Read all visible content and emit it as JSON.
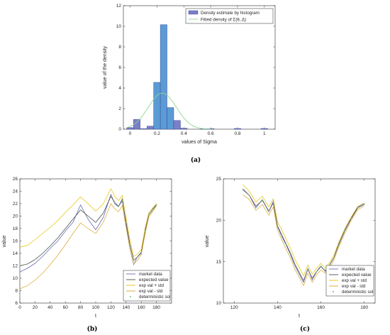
{
  "chart_data": [
    {
      "id": "a",
      "caption": "(a)",
      "type": "bar",
      "xlabel": "values of Sigma",
      "ylabel": "value of the density",
      "xlim": [
        -0.05,
        1.08
      ],
      "ylim": [
        0,
        12
      ],
      "xticks": [
        0,
        0.2,
        0.4,
        0.6,
        0.8,
        1
      ],
      "yticks": [
        0,
        2,
        4,
        6,
        8,
        10,
        12
      ],
      "bin_width": 0.05,
      "bins": [
        {
          "left": -0.025,
          "value": 0.15
        },
        {
          "left": 0.025,
          "value": 0.95
        },
        {
          "left": 0.075,
          "value": 0.05
        },
        {
          "left": 0.125,
          "value": 0.3
        },
        {
          "left": 0.175,
          "value": 4.55
        },
        {
          "left": 0.225,
          "value": 10.15
        },
        {
          "left": 0.275,
          "value": 2.1
        },
        {
          "left": 0.325,
          "value": 0.85
        },
        {
          "left": 0.375,
          "value": 0.1
        },
        {
          "left": 0.525,
          "value": 0.05
        },
        {
          "left": 0.575,
          "value": 0.05
        },
        {
          "left": 0.775,
          "value": 0.07
        },
        {
          "left": 0.975,
          "value": 0.07
        }
      ],
      "fitted_density": {
        "mean": 0.24,
        "std": 0.105,
        "peak": 3.5
      },
      "legend": {
        "position": "top-right",
        "entries": [
          "Density estimate by histogram",
          "Fitted density of Σ(θ, Δ)"
        ]
      },
      "colors": {
        "bar_fill": "#7b7fc9",
        "bar_fill_main": "#5b9bd5",
        "bar_edge": "#2c3a8c",
        "fit": "#8fd68f"
      }
    },
    {
      "id": "b",
      "caption": "(b)",
      "type": "line",
      "xlabel": "t",
      "ylabel": "value",
      "xlim": [
        0,
        200
      ],
      "ylim": [
        6,
        26
      ],
      "xticks": [
        0,
        20,
        40,
        60,
        80,
        100,
        120,
        140,
        160,
        180
      ],
      "yticks": [
        6,
        8,
        10,
        12,
        14,
        16,
        18,
        20,
        22,
        24,
        26
      ],
      "t": [
        0,
        10,
        20,
        30,
        40,
        50,
        60,
        70,
        80,
        90,
        100,
        110,
        120,
        125,
        130,
        135,
        140,
        145,
        150,
        155,
        160,
        165,
        170,
        175,
        180
      ],
      "series": [
        {
          "name": "market data",
          "values": [
            11.0,
            11.6,
            12.4,
            13.5,
            14.8,
            16.0,
            17.6,
            19.0,
            21.8,
            19.5,
            17.8,
            19.8,
            23.5,
            22.0,
            21.5,
            22.8,
            18.5,
            14.8,
            12.2,
            13.5,
            14.0,
            18.0,
            20.5,
            21.2,
            22.0
          ]
        },
        {
          "name": "expected value",
          "values": [
            12.0,
            12.3,
            13.0,
            14.0,
            15.2,
            16.5,
            18.0,
            19.5,
            21.0,
            20.0,
            19.0,
            20.5,
            23.2,
            22.2,
            21.6,
            22.5,
            19.0,
            15.5,
            12.9,
            13.4,
            14.2,
            17.5,
            20.2,
            21.0,
            21.8
          ]
        },
        {
          "name": "exp val + std",
          "values": [
            15.0,
            15.3,
            16.2,
            17.2,
            18.2,
            19.3,
            20.6,
            21.8,
            23.1,
            22.0,
            20.8,
            22.0,
            24.4,
            23.2,
            22.5,
            23.3,
            19.8,
            16.2,
            13.5,
            13.9,
            14.6,
            17.9,
            20.5,
            21.3,
            22.0
          ]
        },
        {
          "name": "exp val - std",
          "values": [
            8.3,
            8.8,
            9.7,
            10.8,
            12.2,
            13.7,
            15.4,
            17.2,
            18.9,
            18.0,
            17.2,
            19.0,
            22.0,
            21.2,
            20.7,
            21.7,
            18.2,
            14.8,
            12.3,
            12.9,
            13.8,
            17.1,
            19.9,
            20.7,
            21.6
          ]
        },
        {
          "name": "deterministic sol",
          "values": [
            12.0,
            12.3,
            13.0,
            14.0,
            15.2,
            16.5,
            18.0,
            19.5,
            21.0,
            20.0,
            19.0,
            20.5,
            23.2,
            22.2,
            21.6,
            22.5,
            19.0,
            15.5,
            12.9,
            13.4,
            14.2,
            17.5,
            20.2,
            21.0,
            21.8
          ]
        }
      ],
      "legend": {
        "position": "bottom-right",
        "entries": [
          "market data",
          "expected value",
          "exp val + std",
          "exp val - std",
          "deterministic sol"
        ]
      },
      "colors": {
        "market": "#6a6ab8",
        "expected": "#4d4d4d",
        "plus": "#e6c200",
        "minus": "#d8a62b",
        "det": "#7fbf7f"
      }
    },
    {
      "id": "c",
      "caption": "(c)",
      "type": "line",
      "xlabel": "t",
      "ylabel": "value",
      "xlim": [
        115,
        185
      ],
      "ylim": [
        10,
        25
      ],
      "xticks": [
        120,
        140,
        160,
        180
      ],
      "yticks": [
        10,
        15,
        20,
        25
      ],
      "t": [
        124,
        127,
        130,
        133,
        136,
        138,
        140,
        142,
        144,
        146,
        148,
        150,
        152,
        154,
        156,
        158,
        160,
        162,
        164,
        166,
        168,
        171,
        174,
        177,
        180
      ],
      "series": [
        {
          "name": "market data",
          "values": [
            23.8,
            23.0,
            21.5,
            22.5,
            21.0,
            22.3,
            19.2,
            18.0,
            17.0,
            15.8,
            14.5,
            13.5,
            12.5,
            14.2,
            12.8,
            13.8,
            14.5,
            13.8,
            14.6,
            15.5,
            17.0,
            18.8,
            20.3,
            21.6,
            22.0
          ]
        },
        {
          "name": "expected value",
          "values": [
            23.7,
            23.0,
            21.7,
            22.4,
            21.1,
            22.1,
            19.3,
            18.2,
            17.1,
            16.0,
            14.7,
            13.7,
            12.7,
            14.1,
            13.0,
            13.8,
            14.4,
            13.9,
            14.6,
            15.5,
            16.9,
            18.7,
            20.2,
            21.5,
            21.9
          ]
        },
        {
          "name": "exp val + std",
          "values": [
            24.3,
            23.5,
            22.2,
            22.9,
            21.6,
            22.6,
            19.8,
            18.8,
            17.7,
            16.6,
            15.3,
            14.3,
            13.3,
            14.6,
            13.5,
            14.2,
            14.8,
            14.2,
            14.9,
            15.8,
            17.2,
            19.0,
            20.4,
            21.7,
            22.1
          ]
        },
        {
          "name": "exp val - std",
          "values": [
            23.1,
            22.5,
            21.2,
            21.9,
            20.6,
            21.6,
            18.8,
            17.6,
            16.5,
            15.4,
            14.1,
            13.1,
            12.1,
            13.6,
            12.5,
            13.4,
            14.0,
            13.6,
            14.3,
            15.2,
            16.6,
            18.4,
            20.0,
            21.3,
            21.7
          ]
        },
        {
          "name": "deterministic sol",
          "values": [
            23.7,
            23.0,
            21.7,
            22.4,
            21.1,
            22.1,
            19.3,
            18.2,
            17.1,
            16.0,
            14.7,
            13.7,
            12.7,
            14.1,
            13.0,
            13.8,
            14.4,
            13.9,
            14.6,
            15.5,
            16.9,
            18.7,
            20.2,
            21.5,
            21.9
          ]
        }
      ],
      "legend": {
        "position": "bottom-right",
        "entries": [
          "market data",
          "expected value",
          "exp val + std",
          "exp val - std",
          "deterministic sol"
        ]
      },
      "colors": {
        "market": "#6a6ab8",
        "expected": "#4d4d4d",
        "plus": "#e6c200",
        "minus": "#d8a62b",
        "det": "#7fbf7f"
      }
    }
  ]
}
